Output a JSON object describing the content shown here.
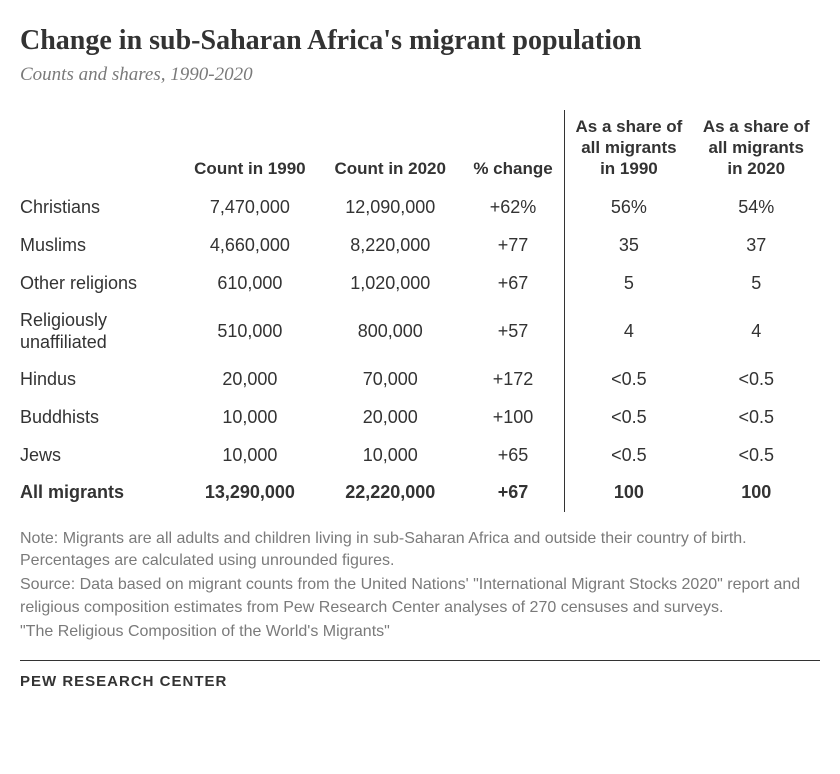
{
  "title": "Change in sub-Saharan Africa's migrant population",
  "subtitle": "Counts and shares, 1990-2020",
  "table": {
    "headers": {
      "c1": "",
      "c2": "Count in 1990",
      "c3": "Count in 2020",
      "c4": "% change",
      "c5": "As a share of all migrants in 1990",
      "c6": "As a share of all migrants in 2020"
    },
    "rows": [
      {
        "label": "Christians",
        "c1990": "7,470,000",
        "c2020": "12,090,000",
        "pct": "+62%",
        "s1990": "56%",
        "s2020": "54%"
      },
      {
        "label": "Muslims",
        "c1990": "4,660,000",
        "c2020": "8,220,000",
        "pct": "+77",
        "s1990": "35",
        "s2020": "37"
      },
      {
        "label": "Other religions",
        "c1990": "610,000",
        "c2020": "1,020,000",
        "pct": "+67",
        "s1990": "5",
        "s2020": "5"
      },
      {
        "label": "Religiously unaffiliated",
        "c1990": "510,000",
        "c2020": "800,000",
        "pct": "+57",
        "s1990": "4",
        "s2020": "4"
      },
      {
        "label": "Hindus",
        "c1990": "20,000",
        "c2020": "70,000",
        "pct": "+172",
        "s1990": "<0.5",
        "s2020": "<0.5"
      },
      {
        "label": "Buddhists",
        "c1990": "10,000",
        "c2020": "20,000",
        "pct": "+100",
        "s1990": "<0.5",
        "s2020": "<0.5"
      },
      {
        "label": "Jews",
        "c1990": "10,000",
        "c2020": "10,000",
        "pct": "+65",
        "s1990": "<0.5",
        "s2020": "<0.5"
      }
    ],
    "total": {
      "label": "All migrants",
      "c1990": "13,290,000",
      "c2020": "22,220,000",
      "pct": "+67",
      "s1990": "100",
      "s2020": "100"
    }
  },
  "notes": {
    "note": "Note: Migrants are all adults and children living in sub-Saharan Africa and outside their country of birth. Percentages are calculated using unrounded figures.",
    "source": "Source: Data based on migrant counts from the United Nations' \"International Migrant Stocks 2020\" report and religious composition estimates from Pew Research Center analyses of 270 censuses and surveys.",
    "report": "\"The Religious Composition of the World's Migrants\""
  },
  "brand": "PEW RESEARCH CENTER",
  "style": {
    "title_fontsize": 28,
    "subtitle_fontsize": 19,
    "body_fontsize": 18,
    "note_fontsize": 16,
    "text_color": "#333333",
    "note_color": "#7a7a7a",
    "background_color": "#ffffff",
    "divider_color": "#333333"
  }
}
